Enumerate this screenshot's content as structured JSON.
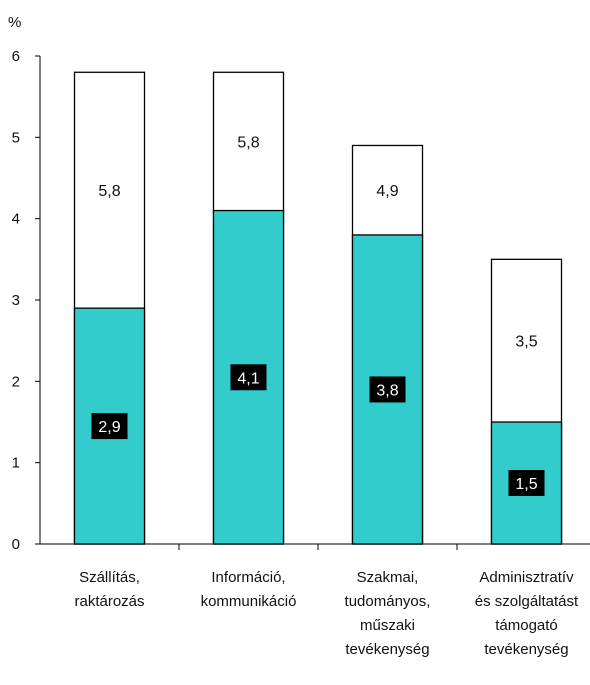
{
  "chart_data": {
    "type": "bar",
    "stacked_overlay": true,
    "unit_label": "%",
    "categories": [
      "Szállítás,\nraktározás",
      "Információ,\nkommunikáció",
      "Szakmai,\ntudományos,\nműszaki\ntevékenység",
      "Adminisztratív\nés szolgáltatást\ntámogató\ntevékenység"
    ],
    "series": [
      {
        "values": [
          2.9,
          4.1,
          3.8,
          1.5
        ],
        "color": "#33cccc",
        "label_style": "inverse"
      },
      {
        "values": [
          5.8,
          5.8,
          4.9,
          3.5
        ],
        "color": "#ffffff",
        "label_style": "plain"
      }
    ],
    "ylim": [
      0,
      6
    ],
    "yticks": [
      0,
      1,
      2,
      3,
      4,
      5,
      6
    ],
    "grid": false
  }
}
